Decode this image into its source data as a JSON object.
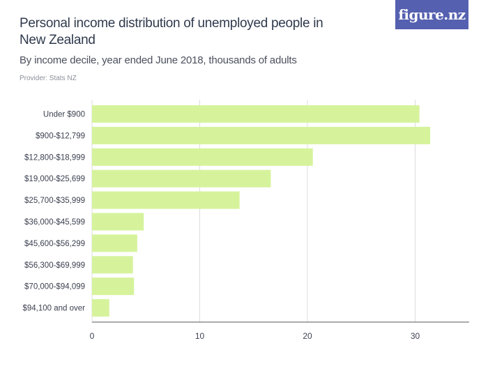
{
  "header": {
    "title": "Personal income distribution of unemployed people in New Zealand",
    "subtitle": "By income decile, year ended June 2018, thousands of adults",
    "provider": "Provider: Stats NZ",
    "logo": "figure.nz"
  },
  "colors": {
    "bar": "#d6f39c",
    "grid": "#dcdcdc",
    "logo_bg": "#5560b0"
  },
  "chart_data": {
    "type": "bar",
    "orientation": "horizontal",
    "title": "Personal income distribution of unemployed people in New Zealand",
    "subtitle": "By income decile, year ended June 2018, thousands of adults",
    "categories": [
      "Under $900",
      "$900-$12,799",
      "$12,800-$18,999",
      "$19,000-$25,699",
      "$25,700-$35,999",
      "$36,000-$45,599",
      "$45,600-$56,299",
      "$56,300-$69,999",
      "$70,000-$94,099",
      "$94,100 and over"
    ],
    "values": [
      30.4,
      31.4,
      20.5,
      16.6,
      13.7,
      4.8,
      4.2,
      3.8,
      3.9,
      1.6
    ],
    "xlim": [
      0,
      35
    ],
    "xticks": [
      0,
      10,
      20,
      30
    ],
    "grid": true
  }
}
